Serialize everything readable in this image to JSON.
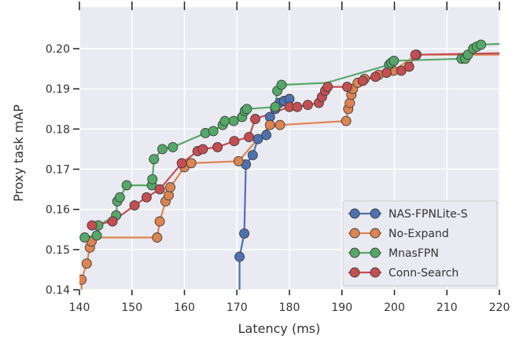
{
  "chart_data": {
    "type": "line",
    "title": "",
    "xlabel": "Latency (ms)",
    "ylabel": "Proxy task mAP",
    "xlim": [
      140,
      220
    ],
    "ylim": [
      0.14,
      0.205
    ],
    "xticks": [
      140,
      150,
      160,
      170,
      180,
      190,
      200,
      210,
      220
    ],
    "yticks": [
      0.14,
      0.15,
      0.16,
      0.17,
      0.18,
      0.19,
      0.2
    ],
    "ytick_labels": [
      "0.14",
      "0.15",
      "0.16",
      "0.17",
      "0.18",
      "0.19",
      "0.20"
    ],
    "grid": true,
    "legend_position": "lower-right",
    "colors": {
      "background": "#eaeaf2",
      "grid": "#ffffff"
    },
    "series": [
      {
        "name": "NAS-FPNLite-S",
        "color": "#4c72b0",
        "points": [
          [
            170.5,
            0.1482
          ],
          [
            171.4,
            0.154
          ],
          [
            171.7,
            0.1712
          ],
          [
            173.0,
            0.1735
          ],
          [
            174.0,
            0.1775
          ],
          [
            175.6,
            0.1785
          ],
          [
            176.3,
            0.183
          ],
          [
            177.3,
            0.185
          ],
          [
            178.1,
            0.1865
          ],
          [
            179.0,
            0.187
          ],
          [
            180.0,
            0.1875
          ]
        ],
        "step_line": [
          [
            170.5,
            0.13
          ],
          [
            170.5,
            0.1482
          ],
          [
            171.4,
            0.154
          ],
          [
            171.7,
            0.1712
          ],
          [
            173.0,
            0.1735
          ],
          [
            174.0,
            0.1775
          ],
          [
            175.6,
            0.1785
          ],
          [
            176.3,
            0.183
          ],
          [
            177.3,
            0.185
          ],
          [
            178.1,
            0.1865
          ],
          [
            179.0,
            0.187
          ],
          [
            180.0,
            0.1875
          ]
        ]
      },
      {
        "name": "No-Expand",
        "color": "#dd8452",
        "points": [
          [
            140.4,
            0.1425
          ],
          [
            141.4,
            0.1465
          ],
          [
            142.0,
            0.1505
          ],
          [
            142.3,
            0.152
          ],
          [
            154.8,
            0.153
          ],
          [
            155.3,
            0.157
          ],
          [
            156.4,
            0.162
          ],
          [
            157.0,
            0.1635
          ],
          [
            157.3,
            0.1655
          ],
          [
            160.0,
            0.1705
          ],
          [
            161.3,
            0.1715
          ],
          [
            170.3,
            0.172
          ],
          [
            176.3,
            0.181
          ],
          [
            178.2,
            0.181
          ],
          [
            190.8,
            0.182
          ],
          [
            191.2,
            0.185
          ],
          [
            191.5,
            0.1865
          ],
          [
            191.8,
            0.1885
          ],
          [
            192.1,
            0.19
          ],
          [
            193.0,
            0.1915
          ],
          [
            194.3,
            0.1925
          ],
          [
            197.0,
            0.1935
          ],
          [
            199.8,
            0.1945
          ],
          [
            204.2,
            0.1985
          ]
        ],
        "step_line": [
          [
            140.4,
            0.13
          ],
          [
            140.4,
            0.1425
          ],
          [
            141.4,
            0.1465
          ],
          [
            142.0,
            0.1505
          ],
          [
            142.3,
            0.152
          ],
          [
            143.0,
            0.153
          ],
          [
            154.8,
            0.153
          ],
          [
            155.3,
            0.157
          ],
          [
            156.4,
            0.162
          ],
          [
            157.0,
            0.1635
          ],
          [
            157.3,
            0.1655
          ],
          [
            160.0,
            0.1705
          ],
          [
            161.3,
            0.1715
          ],
          [
            170.3,
            0.172
          ],
          [
            176.3,
            0.181
          ],
          [
            178.2,
            0.181
          ],
          [
            190.8,
            0.182
          ],
          [
            191.2,
            0.185
          ],
          [
            191.5,
            0.1865
          ],
          [
            191.8,
            0.1885
          ],
          [
            192.1,
            0.19
          ],
          [
            193.0,
            0.1915
          ],
          [
            194.3,
            0.1925
          ],
          [
            197.0,
            0.1935
          ],
          [
            199.8,
            0.1945
          ],
          [
            204.2,
            0.1985
          ],
          [
            225.0,
            0.1985
          ]
        ]
      },
      {
        "name": "MnasFPN",
        "color": "#55a868",
        "points": [
          [
            141.0,
            0.153
          ],
          [
            143.3,
            0.1535
          ],
          [
            143.6,
            0.156
          ],
          [
            147.0,
            0.1585
          ],
          [
            147.2,
            0.162
          ],
          [
            147.7,
            0.163
          ],
          [
            149.0,
            0.166
          ],
          [
            153.8,
            0.166
          ],
          [
            153.9,
            0.1675
          ],
          [
            154.2,
            0.1725
          ],
          [
            155.8,
            0.175
          ],
          [
            157.8,
            0.1755
          ],
          [
            164.0,
            0.179
          ],
          [
            165.5,
            0.1795
          ],
          [
            167.3,
            0.181
          ],
          [
            167.7,
            0.182
          ],
          [
            169.4,
            0.182
          ],
          [
            171.0,
            0.183
          ],
          [
            171.5,
            0.1845
          ],
          [
            171.9,
            0.185
          ],
          [
            177.3,
            0.1855
          ],
          [
            177.7,
            0.1895
          ],
          [
            178.5,
            0.191
          ],
          [
            199.0,
            0.196
          ],
          [
            199.4,
            0.1965
          ],
          [
            199.9,
            0.197
          ],
          [
            212.8,
            0.1975
          ],
          [
            213.5,
            0.1975
          ],
          [
            214.0,
            0.1985
          ],
          [
            215.0,
            0.2
          ],
          [
            215.7,
            0.2005
          ],
          [
            216.5,
            0.201
          ]
        ],
        "step_line": [
          [
            141.0,
            0.153
          ],
          [
            143.3,
            0.1535
          ],
          [
            143.6,
            0.156
          ],
          [
            147.0,
            0.1585
          ],
          [
            147.2,
            0.162
          ],
          [
            147.7,
            0.163
          ],
          [
            149.0,
            0.166
          ],
          [
            153.8,
            0.166
          ],
          [
            153.9,
            0.1675
          ],
          [
            154.2,
            0.1725
          ],
          [
            155.8,
            0.175
          ],
          [
            157.8,
            0.1755
          ],
          [
            164.0,
            0.179
          ],
          [
            165.5,
            0.1795
          ],
          [
            167.3,
            0.181
          ],
          [
            167.7,
            0.182
          ],
          [
            169.4,
            0.182
          ],
          [
            171.0,
            0.183
          ],
          [
            171.5,
            0.1845
          ],
          [
            171.9,
            0.185
          ],
          [
            177.3,
            0.1855
          ],
          [
            177.7,
            0.1895
          ],
          [
            178.5,
            0.191
          ],
          [
            187.0,
            0.1915
          ],
          [
            199.0,
            0.196
          ],
          [
            199.4,
            0.1965
          ],
          [
            199.9,
            0.197
          ],
          [
            212.8,
            0.1975
          ],
          [
            213.5,
            0.1975
          ],
          [
            214.0,
            0.1985
          ],
          [
            215.0,
            0.2
          ],
          [
            215.7,
            0.2005
          ],
          [
            216.5,
            0.201
          ],
          [
            220.0,
            0.2012
          ]
        ]
      },
      {
        "name": "Conn-Search",
        "color": "#c44e52",
        "points": [
          [
            142.4,
            0.156
          ],
          [
            146.3,
            0.157
          ],
          [
            150.5,
            0.161
          ],
          [
            152.8,
            0.163
          ],
          [
            155.3,
            0.165
          ],
          [
            159.5,
            0.1715
          ],
          [
            162.5,
            0.1745
          ],
          [
            163.5,
            0.175
          ],
          [
            166.3,
            0.1755
          ],
          [
            169.5,
            0.177
          ],
          [
            172.3,
            0.178
          ],
          [
            173.5,
            0.1825
          ],
          [
            180.0,
            0.1855
          ],
          [
            181.5,
            0.1855
          ],
          [
            183.5,
            0.186
          ],
          [
            185.6,
            0.1865
          ],
          [
            186.2,
            0.188
          ],
          [
            186.8,
            0.1895
          ],
          [
            187.3,
            0.1905
          ],
          [
            191.0,
            0.1905
          ],
          [
            194.0,
            0.192
          ],
          [
            196.4,
            0.193
          ],
          [
            198.5,
            0.194
          ],
          [
            201.3,
            0.1945
          ],
          [
            202.8,
            0.1955
          ],
          [
            204.0,
            0.1985
          ]
        ],
        "step_line": [
          [
            142.4,
            0.156
          ],
          [
            146.3,
            0.157
          ],
          [
            150.5,
            0.161
          ],
          [
            152.8,
            0.163
          ],
          [
            155.3,
            0.165
          ],
          [
            159.5,
            0.1715
          ],
          [
            162.5,
            0.1745
          ],
          [
            163.5,
            0.175
          ],
          [
            166.3,
            0.1755
          ],
          [
            169.5,
            0.177
          ],
          [
            172.3,
            0.178
          ],
          [
            173.5,
            0.1825
          ],
          [
            180.0,
            0.1855
          ],
          [
            181.5,
            0.1855
          ],
          [
            183.5,
            0.186
          ],
          [
            185.6,
            0.1865
          ],
          [
            186.2,
            0.188
          ],
          [
            186.8,
            0.1895
          ],
          [
            187.3,
            0.1905
          ],
          [
            191.0,
            0.1905
          ],
          [
            194.0,
            0.192
          ],
          [
            196.4,
            0.193
          ],
          [
            198.5,
            0.194
          ],
          [
            201.3,
            0.1945
          ],
          [
            202.8,
            0.1955
          ],
          [
            204.0,
            0.1985
          ],
          [
            225.0,
            0.199
          ]
        ]
      }
    ]
  }
}
